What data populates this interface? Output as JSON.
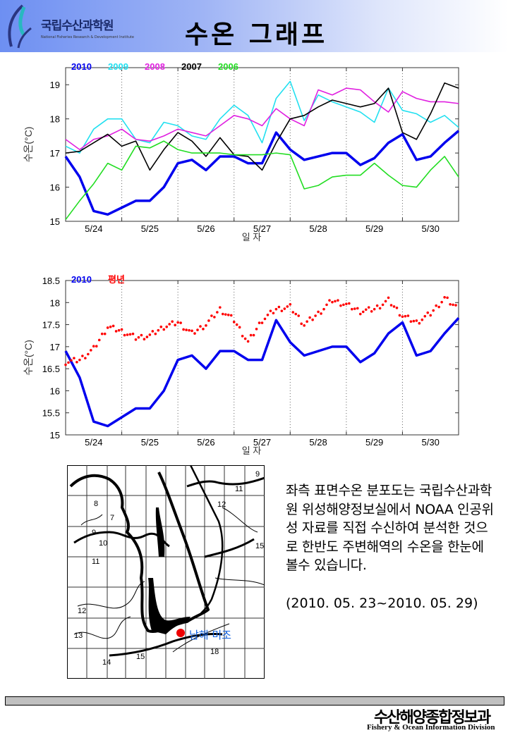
{
  "header": {
    "logo_text": "국립수산과학원",
    "logo_subtext": "National Fisheries Research & Development Institute",
    "title": "수온 그래프"
  },
  "colors": {
    "2010": "#0000ee",
    "2009": "#22e0f0",
    "2008": "#e020e0",
    "2007": "#000000",
    "2006": "#22dd22",
    "normal": "#ff0000"
  },
  "chart_data": [
    {
      "type": "line",
      "ylabel": "수온(°C)",
      "xlabel": "일 자",
      "ylim": [
        15,
        19.5
      ],
      "yticks": [
        "15",
        "16",
        "17",
        "18",
        "19"
      ],
      "xticks": [
        "5/24",
        "5/25",
        "5/26",
        "5/27",
        "5/28",
        "5/29",
        "5/30"
      ],
      "grid": "vertical dotted day separators",
      "legend": "top-left",
      "x": [
        "5/24 00h",
        "5/24 06h",
        "5/24 12h",
        "5/24 18h",
        "5/25 00h",
        "5/25 06h",
        "5/25 12h",
        "5/25 18h",
        "5/26 00h",
        "5/26 06h",
        "5/26 12h",
        "5/26 18h",
        "5/27 00h",
        "5/27 06h",
        "5/27 12h",
        "5/27 18h",
        "5/28 00h",
        "5/28 06h",
        "5/28 12h",
        "5/28 18h",
        "5/29 00h",
        "5/29 06h",
        "5/29 12h",
        "5/29 18h",
        "5/30 00h",
        "5/30 06h",
        "5/30 12h",
        "5/30 18h",
        "5/31 00h"
      ],
      "series": [
        {
          "name": "2010",
          "color": "#0000ee",
          "values": [
            16.9,
            16.3,
            15.3,
            15.2,
            15.4,
            15.6,
            15.6,
            16.0,
            16.7,
            16.8,
            16.5,
            16.9,
            16.9,
            16.7,
            16.7,
            17.6,
            17.1,
            16.8,
            16.9,
            17.0,
            17.0,
            16.65,
            16.85,
            17.3,
            17.55,
            16.8,
            16.9,
            17.3,
            17.65
          ]
        },
        {
          "name": "2009",
          "color": "#22e0f0",
          "values": [
            17.2,
            17.0,
            17.7,
            18.0,
            18.0,
            17.4,
            17.3,
            17.9,
            17.8,
            17.5,
            17.4,
            18.0,
            18.4,
            18.1,
            17.3,
            18.6,
            19.1,
            17.95,
            18.7,
            18.5,
            18.35,
            18.2,
            17.9,
            18.9,
            18.25,
            18.15,
            17.9,
            18.1,
            17.75
          ]
        },
        {
          "name": "2008",
          "color": "#e020e0",
          "values": [
            17.4,
            17.1,
            17.4,
            17.5,
            17.7,
            17.4,
            17.35,
            17.5,
            17.7,
            17.6,
            17.5,
            17.8,
            18.1,
            18.0,
            17.8,
            18.3,
            18.0,
            17.8,
            18.85,
            18.7,
            18.9,
            18.85,
            18.5,
            18.2,
            18.8,
            18.6,
            18.5,
            18.5,
            18.45
          ]
        },
        {
          "name": "2007",
          "color": "#000000",
          "values": [
            17.0,
            17.05,
            17.3,
            17.55,
            17.2,
            17.35,
            16.5,
            17.1,
            17.6,
            17.35,
            16.9,
            17.45,
            16.95,
            16.9,
            16.5,
            17.3,
            18.0,
            18.1,
            18.35,
            18.55,
            18.45,
            18.35,
            18.45,
            18.9,
            17.6,
            17.4,
            18.15,
            19.05,
            18.9
          ]
        },
        {
          "name": "2006",
          "color": "#22dd22",
          "values": [
            15.05,
            15.6,
            16.1,
            16.7,
            16.5,
            17.2,
            17.15,
            17.35,
            17.1,
            17.0,
            17.0,
            17.0,
            16.95,
            16.95,
            16.95,
            17.0,
            16.95,
            15.95,
            16.05,
            16.3,
            16.35,
            16.35,
            16.7,
            16.35,
            16.05,
            16.0,
            16.5,
            16.9,
            16.3
          ]
        }
      ]
    },
    {
      "type": "line",
      "ylabel": "수온(°C)",
      "xlabel": "일 자",
      "ylim": [
        15,
        18.5
      ],
      "yticks": [
        "15",
        "15.5",
        "16",
        "16.5",
        "17",
        "17.5",
        "18",
        "18.5"
      ],
      "xticks": [
        "5/24",
        "5/25",
        "5/26",
        "5/27",
        "5/28",
        "5/29",
        "5/30"
      ],
      "grid": "vertical dotted day separators",
      "legend": "top-left",
      "x": [
        "5/24 00h",
        "5/24 06h",
        "5/24 12h",
        "5/24 18h",
        "5/25 00h",
        "5/25 06h",
        "5/25 12h",
        "5/25 18h",
        "5/26 00h",
        "5/26 06h",
        "5/26 12h",
        "5/26 18h",
        "5/27 00h",
        "5/27 06h",
        "5/27 12h",
        "5/27 18h",
        "5/28 00h",
        "5/28 06h",
        "5/28 12h",
        "5/28 18h",
        "5/29 00h",
        "5/29 06h",
        "5/29 12h",
        "5/29 18h",
        "5/30 00h",
        "5/30 06h",
        "5/30 12h",
        "5/30 18h",
        "5/31 00h"
      ],
      "series": [
        {
          "name": "2010",
          "color": "#0000ee",
          "style": "line",
          "values": [
            16.9,
            16.3,
            15.3,
            15.2,
            15.4,
            15.6,
            15.6,
            16.0,
            16.7,
            16.8,
            16.5,
            16.9,
            16.9,
            16.7,
            16.7,
            17.6,
            17.1,
            16.8,
            16.9,
            17.0,
            17.0,
            16.65,
            16.85,
            17.3,
            17.55,
            16.8,
            16.9,
            17.3,
            17.65
          ]
        },
        {
          "name": "평년",
          "color": "#ff0000",
          "style": "dots",
          "values": [
            16.65,
            16.7,
            16.95,
            17.45,
            17.35,
            17.2,
            17.25,
            17.45,
            17.55,
            17.3,
            17.5,
            17.85,
            17.6,
            17.1,
            17.6,
            17.85,
            17.9,
            17.5,
            17.75,
            18.05,
            17.95,
            17.8,
            17.85,
            18.05,
            17.7,
            17.55,
            17.75,
            18.1,
            17.85
          ]
        }
      ]
    }
  ],
  "map": {
    "contour_labels": [
      "9",
      "11",
      "12",
      "8",
      "7",
      "9",
      "10",
      "15",
      "11",
      "12",
      "13",
      "14",
      "15",
      "18"
    ],
    "station_label": "남해 미조"
  },
  "description": {
    "paragraph": "좌측 표면수온 분포도는 국립수산과학원 위성해양정보실에서 NOAA 인공위성 자료를 직접 수신하여 분석한 것으로 한반도 주변해역의 수온을 한눈에 볼수 있습니다.",
    "period": "(2010. 05. 23~2010. 05. 29)"
  },
  "footer": {
    "division_ko": "수산해양종합정보과",
    "division_en": "Fishery & Ocean Information Division"
  }
}
